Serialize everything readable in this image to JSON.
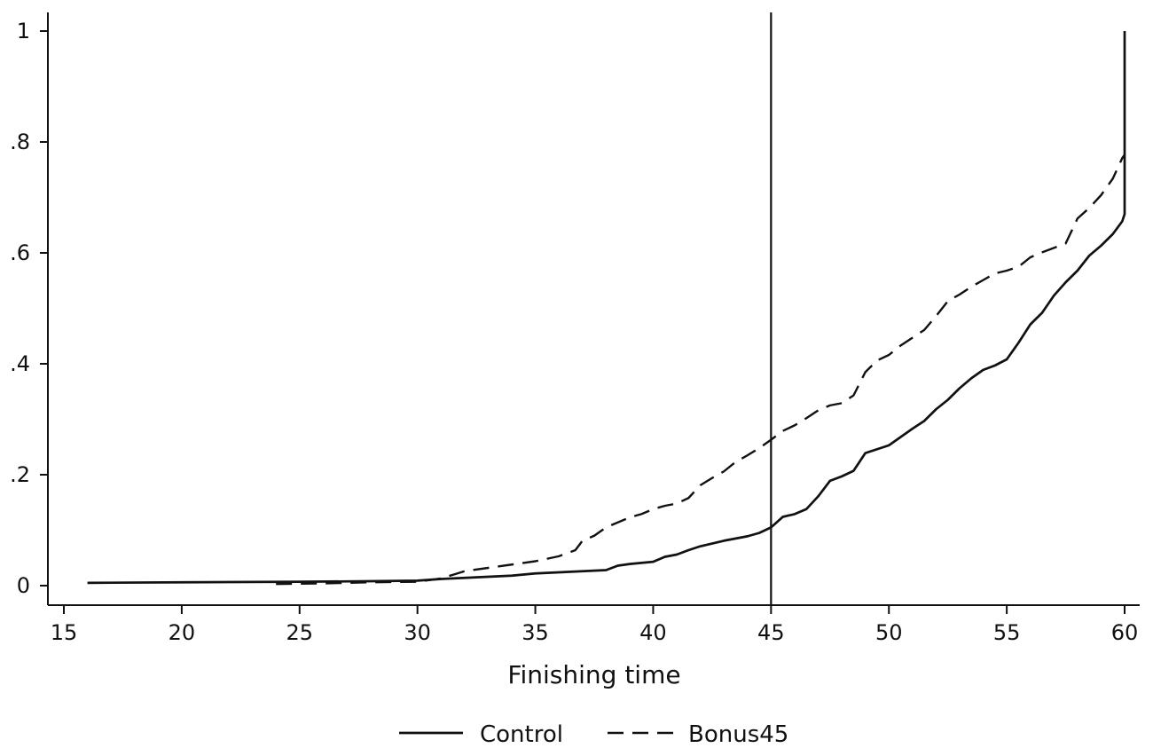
{
  "chart_data": {
    "type": "line",
    "title": "",
    "xlabel": "Finishing time",
    "ylabel": "",
    "xlim": [
      15,
      60.4
    ],
    "ylim": [
      0,
      1
    ],
    "x_ticks": [
      15,
      20,
      25,
      30,
      35,
      40,
      45,
      50,
      55,
      60
    ],
    "x_tick_labels": [
      "15",
      "20",
      "25",
      "30",
      "35",
      "40",
      "45",
      "50",
      "55",
      "60"
    ],
    "y_ticks": [
      0,
      0.2,
      0.4,
      0.6,
      0.8,
      1
    ],
    "y_tick_labels": [
      "0",
      ".2",
      ".4",
      ".6",
      ".8",
      "1"
    ],
    "grid": false,
    "legend_position": "bottom",
    "reference_lines": [
      {
        "axis": "x",
        "value": 45
      }
    ],
    "series": [
      {
        "name": "Control",
        "style": "solid",
        "color": "#111111",
        "points": [
          [
            16,
            0.005
          ],
          [
            20,
            0.006
          ],
          [
            25,
            0.007
          ],
          [
            28,
            0.008
          ],
          [
            30,
            0.009
          ],
          [
            31,
            0.012
          ],
          [
            32,
            0.014
          ],
          [
            33,
            0.016
          ],
          [
            34,
            0.018
          ],
          [
            35,
            0.022
          ],
          [
            36,
            0.024
          ],
          [
            37,
            0.026
          ],
          [
            38,
            0.028
          ],
          [
            38.5,
            0.036
          ],
          [
            39,
            0.039
          ],
          [
            40,
            0.043
          ],
          [
            40.5,
            0.052
          ],
          [
            41,
            0.056
          ],
          [
            41.5,
            0.064
          ],
          [
            42,
            0.071
          ],
          [
            43,
            0.081
          ],
          [
            44,
            0.089
          ],
          [
            44.5,
            0.095
          ],
          [
            45,
            0.105
          ],
          [
            45.5,
            0.124
          ],
          [
            46,
            0.129
          ],
          [
            46.5,
            0.138
          ],
          [
            47,
            0.161
          ],
          [
            47.5,
            0.189
          ],
          [
            48,
            0.197
          ],
          [
            48.5,
            0.207
          ],
          [
            49,
            0.239
          ],
          [
            50,
            0.253
          ],
          [
            50.5,
            0.268
          ],
          [
            51,
            0.283
          ],
          [
            51.5,
            0.297
          ],
          [
            52,
            0.318
          ],
          [
            52.5,
            0.335
          ],
          [
            53,
            0.356
          ],
          [
            53.5,
            0.374
          ],
          [
            54,
            0.389
          ],
          [
            54.5,
            0.397
          ],
          [
            55,
            0.408
          ],
          [
            55.5,
            0.438
          ],
          [
            56,
            0.471
          ],
          [
            56.5,
            0.492
          ],
          [
            57,
            0.523
          ],
          [
            57.5,
            0.547
          ],
          [
            58,
            0.568
          ],
          [
            58.5,
            0.595
          ],
          [
            59,
            0.613
          ],
          [
            59.5,
            0.634
          ],
          [
            59.9,
            0.657
          ],
          [
            60,
            0.67
          ],
          [
            60,
            1.0
          ]
        ]
      },
      {
        "name": "Bonus45",
        "style": "dashed",
        "color": "#111111",
        "points": [
          [
            24,
            0.003
          ],
          [
            26,
            0.004
          ],
          [
            28,
            0.006
          ],
          [
            30,
            0.007
          ],
          [
            31,
            0.013
          ],
          [
            32,
            0.026
          ],
          [
            33,
            0.032
          ],
          [
            34,
            0.038
          ],
          [
            35,
            0.044
          ],
          [
            36,
            0.053
          ],
          [
            36.7,
            0.064
          ],
          [
            37,
            0.081
          ],
          [
            37.5,
            0.09
          ],
          [
            38,
            0.105
          ],
          [
            38.5,
            0.114
          ],
          [
            39,
            0.123
          ],
          [
            39.5,
            0.129
          ],
          [
            40,
            0.138
          ],
          [
            40.5,
            0.144
          ],
          [
            41,
            0.148
          ],
          [
            41.5,
            0.158
          ],
          [
            42,
            0.181
          ],
          [
            42.5,
            0.194
          ],
          [
            43,
            0.206
          ],
          [
            43.5,
            0.223
          ],
          [
            44,
            0.235
          ],
          [
            44.5,
            0.248
          ],
          [
            45,
            0.263
          ],
          [
            45.5,
            0.279
          ],
          [
            46,
            0.289
          ],
          [
            46.5,
            0.302
          ],
          [
            47,
            0.316
          ],
          [
            47.5,
            0.325
          ],
          [
            48,
            0.329
          ],
          [
            48.5,
            0.343
          ],
          [
            49,
            0.385
          ],
          [
            49.5,
            0.406
          ],
          [
            50,
            0.416
          ],
          [
            50.5,
            0.433
          ],
          [
            51,
            0.447
          ],
          [
            51.5,
            0.461
          ],
          [
            52,
            0.486
          ],
          [
            52.5,
            0.513
          ],
          [
            53,
            0.525
          ],
          [
            53.5,
            0.539
          ],
          [
            54,
            0.551
          ],
          [
            54.5,
            0.563
          ],
          [
            55,
            0.568
          ],
          [
            55.5,
            0.575
          ],
          [
            56,
            0.592
          ],
          [
            56.5,
            0.601
          ],
          [
            57,
            0.609
          ],
          [
            57.5,
            0.617
          ],
          [
            58,
            0.662
          ],
          [
            58.5,
            0.681
          ],
          [
            59,
            0.704
          ],
          [
            59.5,
            0.734
          ],
          [
            59.9,
            0.771
          ],
          [
            60,
            0.777
          ]
        ]
      }
    ]
  }
}
